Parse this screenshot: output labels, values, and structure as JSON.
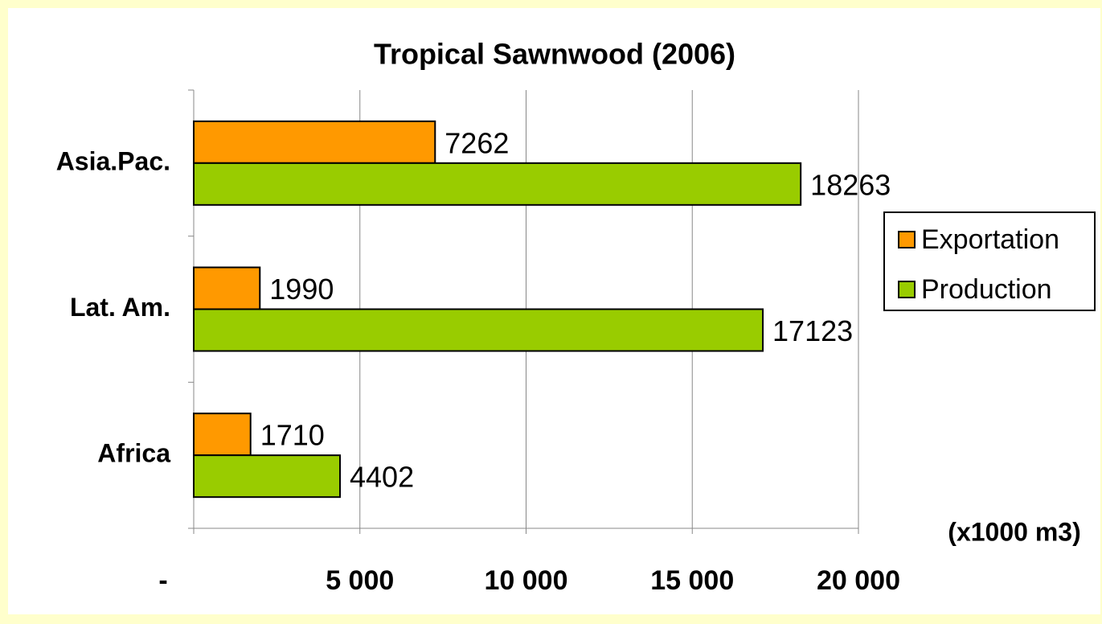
{
  "chart_data": {
    "type": "bar",
    "orientation": "horizontal",
    "title": "Tropical Sawnwood (2006)",
    "categories": [
      "Asia.Pac.",
      "Lat. Am.",
      "Africa"
    ],
    "series": [
      {
        "name": "Exportation",
        "color": "#ff9900",
        "values": [
          7262,
          1990,
          1710
        ]
      },
      {
        "name": "Production",
        "color": "#99cc00",
        "values": [
          18263,
          17123,
          4402
        ]
      }
    ],
    "x_label": "(x1000 m3)",
    "xlim": [
      0,
      20000
    ],
    "xticks": [
      {
        "value": 0,
        "label": "-"
      },
      {
        "value": 5000,
        "label": "5 000"
      },
      {
        "value": 10000,
        "label": "10 000"
      },
      {
        "value": 15000,
        "label": "15 000"
      },
      {
        "value": 20000,
        "label": "20 000"
      }
    ],
    "grid": true,
    "legend": "right"
  }
}
